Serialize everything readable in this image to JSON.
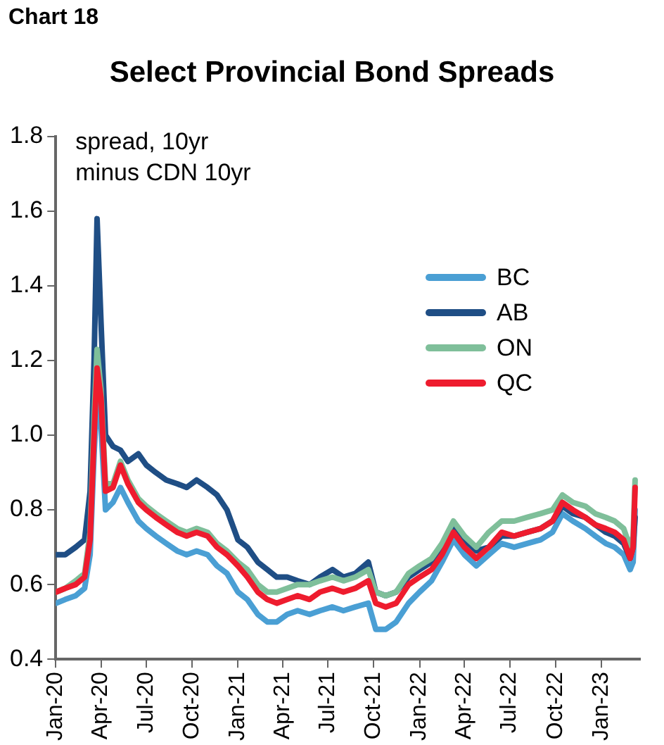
{
  "chart_data": {
    "type": "line",
    "title": "Select Provincial Bond Spreads",
    "ylabel": "spread, 10yr\nminus CDN 10yr",
    "annotations": [
      "Chart 18"
    ],
    "x": [
      "2020-01-02",
      "2020-01-20",
      "2020-02-10",
      "2020-02-28",
      "2020-03-10",
      "2020-03-18",
      "2020-03-24",
      "2020-04-01",
      "2020-04-10",
      "2020-04-25",
      "2020-05-10",
      "2020-05-25",
      "2020-06-15",
      "2020-07-01",
      "2020-07-20",
      "2020-08-10",
      "2020-09-01",
      "2020-09-20",
      "2020-10-10",
      "2020-11-01",
      "2020-11-20",
      "2020-12-10",
      "2021-01-01",
      "2021-01-20",
      "2021-02-10",
      "2021-03-01",
      "2021-03-20",
      "2021-04-10",
      "2021-05-01",
      "2021-05-25",
      "2021-06-15",
      "2021-07-10",
      "2021-08-01",
      "2021-08-25",
      "2021-09-20",
      "2021-10-05",
      "2021-10-25",
      "2021-11-15",
      "2021-12-10",
      "2022-01-01",
      "2022-01-25",
      "2022-02-15",
      "2022-03-10",
      "2022-04-01",
      "2022-04-25",
      "2022-05-20",
      "2022-06-15",
      "2022-07-10",
      "2022-08-05",
      "2022-09-01",
      "2022-09-25",
      "2022-10-15",
      "2022-11-05",
      "2022-11-30",
      "2022-12-20",
      "2023-01-10",
      "2023-01-28",
      "2023-02-15",
      "2023-02-28",
      "2023-03-06",
      "2023-03-10"
    ],
    "series": [
      {
        "name": "BC",
        "color": "#4a9fd4",
        "values": [
          0.55,
          0.56,
          0.57,
          0.59,
          0.68,
          0.95,
          1.1,
          1.02,
          0.8,
          0.82,
          0.86,
          0.82,
          0.77,
          0.75,
          0.73,
          0.71,
          0.69,
          0.68,
          0.69,
          0.68,
          0.65,
          0.63,
          0.58,
          0.56,
          0.52,
          0.5,
          0.5,
          0.52,
          0.53,
          0.52,
          0.53,
          0.54,
          0.53,
          0.54,
          0.55,
          0.48,
          0.48,
          0.5,
          0.55,
          0.58,
          0.61,
          0.66,
          0.72,
          0.68,
          0.65,
          0.68,
          0.71,
          0.7,
          0.71,
          0.72,
          0.74,
          0.79,
          0.77,
          0.75,
          0.73,
          0.71,
          0.7,
          0.68,
          0.64,
          0.66,
          0.8
        ]
      },
      {
        "name": "AB",
        "color": "#1f4e85",
        "values": [
          0.68,
          0.68,
          0.7,
          0.72,
          0.85,
          1.2,
          1.58,
          1.3,
          1.0,
          0.97,
          0.96,
          0.93,
          0.95,
          0.92,
          0.9,
          0.88,
          0.87,
          0.86,
          0.88,
          0.86,
          0.84,
          0.8,
          0.72,
          0.7,
          0.66,
          0.64,
          0.62,
          0.62,
          0.61,
          0.6,
          0.62,
          0.64,
          0.62,
          0.63,
          0.66,
          0.58,
          0.57,
          0.58,
          0.62,
          0.64,
          0.66,
          0.7,
          0.75,
          0.72,
          0.69,
          0.7,
          0.73,
          0.73,
          0.74,
          0.75,
          0.77,
          0.81,
          0.79,
          0.78,
          0.76,
          0.74,
          0.73,
          0.71,
          0.67,
          0.7,
          0.78
        ]
      },
      {
        "name": "ON",
        "color": "#7fbf9a",
        "values": [
          0.58,
          0.59,
          0.61,
          0.63,
          0.74,
          1.05,
          1.23,
          1.12,
          0.87,
          0.87,
          0.93,
          0.88,
          0.83,
          0.81,
          0.79,
          0.77,
          0.75,
          0.74,
          0.75,
          0.74,
          0.71,
          0.69,
          0.66,
          0.64,
          0.6,
          0.58,
          0.58,
          0.59,
          0.6,
          0.6,
          0.61,
          0.62,
          0.61,
          0.62,
          0.64,
          0.58,
          0.57,
          0.58,
          0.63,
          0.65,
          0.67,
          0.71,
          0.77,
          0.73,
          0.7,
          0.74,
          0.77,
          0.77,
          0.78,
          0.79,
          0.8,
          0.84,
          0.82,
          0.81,
          0.79,
          0.78,
          0.77,
          0.75,
          0.7,
          0.73,
          0.88
        ]
      },
      {
        "name": "QC",
        "color": "#ee1c2e",
        "values": [
          0.58,
          0.59,
          0.6,
          0.62,
          0.72,
          1.0,
          1.18,
          1.1,
          0.85,
          0.86,
          0.92,
          0.87,
          0.82,
          0.8,
          0.78,
          0.76,
          0.74,
          0.73,
          0.74,
          0.73,
          0.7,
          0.68,
          0.65,
          0.62,
          0.58,
          0.56,
          0.55,
          0.56,
          0.57,
          0.56,
          0.58,
          0.59,
          0.58,
          0.59,
          0.61,
          0.55,
          0.54,
          0.55,
          0.6,
          0.62,
          0.64,
          0.68,
          0.74,
          0.7,
          0.67,
          0.7,
          0.74,
          0.73,
          0.74,
          0.75,
          0.77,
          0.82,
          0.8,
          0.78,
          0.76,
          0.75,
          0.74,
          0.72,
          0.67,
          0.7,
          0.86
        ]
      }
    ],
    "xlim": [
      "2020-01-01",
      "2023-03-20"
    ],
    "xticks": [
      {
        "value": "2020-01-01",
        "label": "Jan-20"
      },
      {
        "value": "2020-04-01",
        "label": "Apr-20"
      },
      {
        "value": "2020-07-01",
        "label": "Jul-20"
      },
      {
        "value": "2020-10-01",
        "label": "Oct-20"
      },
      {
        "value": "2021-01-01",
        "label": "Jan-21"
      },
      {
        "value": "2021-04-01",
        "label": "Apr-21"
      },
      {
        "value": "2021-07-01",
        "label": "Jul-21"
      },
      {
        "value": "2021-10-01",
        "label": "Oct-21"
      },
      {
        "value": "2022-01-01",
        "label": "Jan-22"
      },
      {
        "value": "2022-04-01",
        "label": "Apr-22"
      },
      {
        "value": "2022-07-01",
        "label": "Jul-22"
      },
      {
        "value": "2022-10-01",
        "label": "Oct-22"
      },
      {
        "value": "2023-01-01",
        "label": "Jan-23"
      }
    ],
    "ylim": [
      0.4,
      1.8
    ],
    "yticks": [
      {
        "value": 0.4,
        "label": "0.4"
      },
      {
        "value": 0.6,
        "label": "0.6"
      },
      {
        "value": 0.8,
        "label": "0.8"
      },
      {
        "value": 1.0,
        "label": "1.0"
      },
      {
        "value": 1.2,
        "label": "1.2"
      },
      {
        "value": 1.4,
        "label": "1.4"
      },
      {
        "value": 1.6,
        "label": "1.6"
      },
      {
        "value": 1.8,
        "label": "1.8"
      }
    ],
    "grid": false,
    "legend": "right",
    "marker": "none",
    "line_style": "solid"
  }
}
